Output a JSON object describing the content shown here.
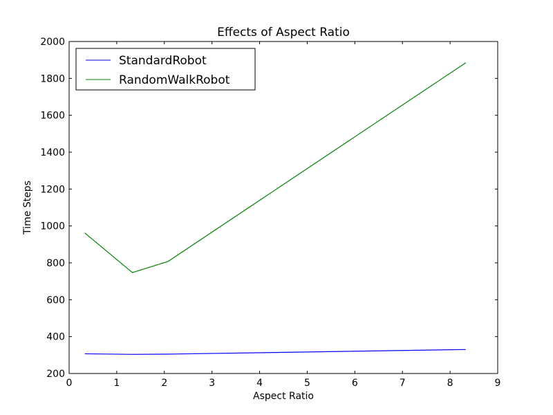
{
  "chart_data": {
    "type": "line",
    "title": "Effects of Aspect Ratio",
    "xlabel": "Aspect Ratio",
    "ylabel": "Time Steps",
    "xlim": [
      0,
      9
    ],
    "ylim": [
      200,
      2000
    ],
    "xticks": [
      0,
      1,
      2,
      3,
      4,
      5,
      6,
      7,
      8,
      9
    ],
    "yticks": [
      200,
      400,
      600,
      800,
      1000,
      1200,
      1400,
      1600,
      1800,
      2000
    ],
    "grid": false,
    "legend_position": "top-left",
    "x": [
      0.33,
      1.33,
      2.08,
      8.33
    ],
    "series": [
      {
        "name": "StandardRobot",
        "color": "#0000ff",
        "values": [
          307,
          304,
          305,
          330
        ]
      },
      {
        "name": "RandomWalkRobot",
        "color": "#008000",
        "values": [
          962,
          747,
          808,
          1885
        ]
      }
    ]
  }
}
